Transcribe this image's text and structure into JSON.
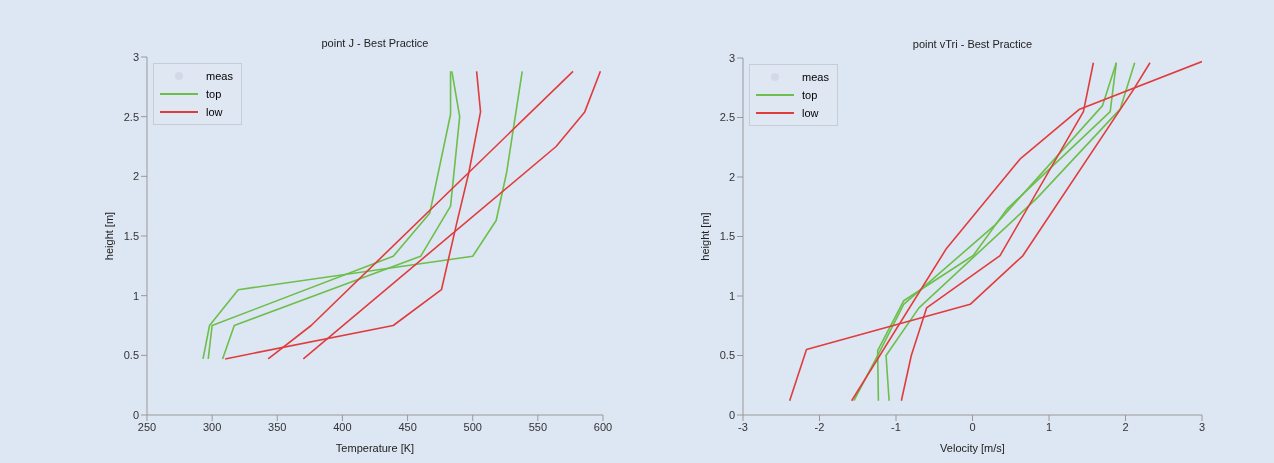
{
  "chart_data": [
    {
      "type": "line",
      "title": "point J - Best Practice",
      "xlabel": "Temperature [K]",
      "ylabel": "height [m]",
      "xlim": [
        250,
        600
      ],
      "xticks": [
        250,
        300,
        350,
        400,
        450,
        500,
        550,
        600
      ],
      "ylim": [
        0,
        3
      ],
      "yticks": [
        0,
        0.5,
        1,
        1.5,
        2,
        2.5,
        3
      ],
      "legend": "top left",
      "grid": false,
      "series": [
        {
          "name": "meas",
          "type": "scatter",
          "color": "#d3d9e6"
        },
        {
          "name": "top",
          "color": "#6cbf4a",
          "x": [
            293,
            298,
            320,
            500,
            518,
            526,
            538
          ],
          "values": [
            0.47,
            0.75,
            1.05,
            1.33,
            1.63,
            2.03,
            2.88
          ]
        },
        {
          "color": "#6cbf4a",
          "x": [
            297,
            300,
            439,
            467,
            483,
            483
          ],
          "values": [
            0.47,
            0.75,
            1.33,
            1.69,
            2.52,
            2.88
          ]
        },
        {
          "color": "#6cbf4a",
          "x": [
            308,
            317,
            460,
            483,
            490,
            484
          ],
          "values": [
            0.47,
            0.75,
            1.33,
            1.75,
            2.5,
            2.88
          ]
        },
        {
          "name": "low",
          "color": "#e03c3c",
          "x": [
            310,
            439,
            476,
            488,
            497,
            506,
            503
          ],
          "values": [
            0.47,
            0.75,
            1.05,
            1.62,
            2.03,
            2.54,
            2.88
          ]
        },
        {
          "color": "#e03c3c",
          "x": [
            343,
            376,
            577
          ],
          "values": [
            0.47,
            0.75,
            2.88
          ]
        },
        {
          "color": "#e03c3c",
          "x": [
            370,
            564,
            586,
            598
          ],
          "values": [
            0.47,
            2.25,
            2.54,
            2.88
          ]
        }
      ]
    },
    {
      "type": "line",
      "title": "point vTri - Best Practice",
      "xlabel": "Velocity [m/s]",
      "ylabel": "height [m]",
      "xlim": [
        -3,
        3
      ],
      "xticks": [
        -3,
        -2,
        -1,
        0,
        1,
        2,
        3
      ],
      "ylim": [
        0,
        3
      ],
      "yticks": [
        0,
        0.5,
        1,
        1.5,
        2,
        2.5,
        3
      ],
      "legend": "top left",
      "grid": false,
      "series": [
        {
          "name": "meas",
          "type": "scatter",
          "color": "#d3d9e6"
        },
        {
          "name": "top",
          "color": "#6cbf4a",
          "x": [
            -1.23,
            -1.24,
            -0.9,
            0.01,
            0.45,
            1.8,
            1.88
          ],
          "values": [
            0.12,
            0.54,
            0.96,
            1.34,
            1.73,
            2.55,
            2.96
          ]
        },
        {
          "color": "#6cbf4a",
          "x": [
            -1.09,
            -1.13,
            -0.7,
            0.84,
            1.93,
            2.12
          ],
          "values": [
            0.12,
            0.5,
            0.9,
            1.82,
            2.57,
            2.96
          ]
        },
        {
          "color": "#6cbf4a",
          "x": [
            -1.55,
            -1.2,
            -0.9,
            0.3,
            1.7,
            1.88
          ],
          "values": [
            0.12,
            0.55,
            0.93,
            1.6,
            2.6,
            2.96
          ]
        },
        {
          "name": "low",
          "color": "#e03c3c",
          "x": [
            -2.39,
            -2.17,
            -0.03,
            0.66,
            2.1,
            2.32
          ],
          "values": [
            0.12,
            0.55,
            0.93,
            1.34,
            2.73,
            2.96
          ]
        },
        {
          "color": "#e03c3c",
          "x": [
            -0.93,
            -0.8,
            -0.6,
            0.36,
            1.45,
            1.58
          ],
          "values": [
            0.12,
            0.5,
            0.9,
            1.34,
            2.55,
            2.96
          ]
        },
        {
          "color": "#e03c3c",
          "x": [
            -1.58,
            -0.34,
            0.62,
            1.4,
            3
          ],
          "values": [
            0.12,
            1.4,
            2.15,
            2.57,
            2.97
          ]
        }
      ]
    }
  ]
}
